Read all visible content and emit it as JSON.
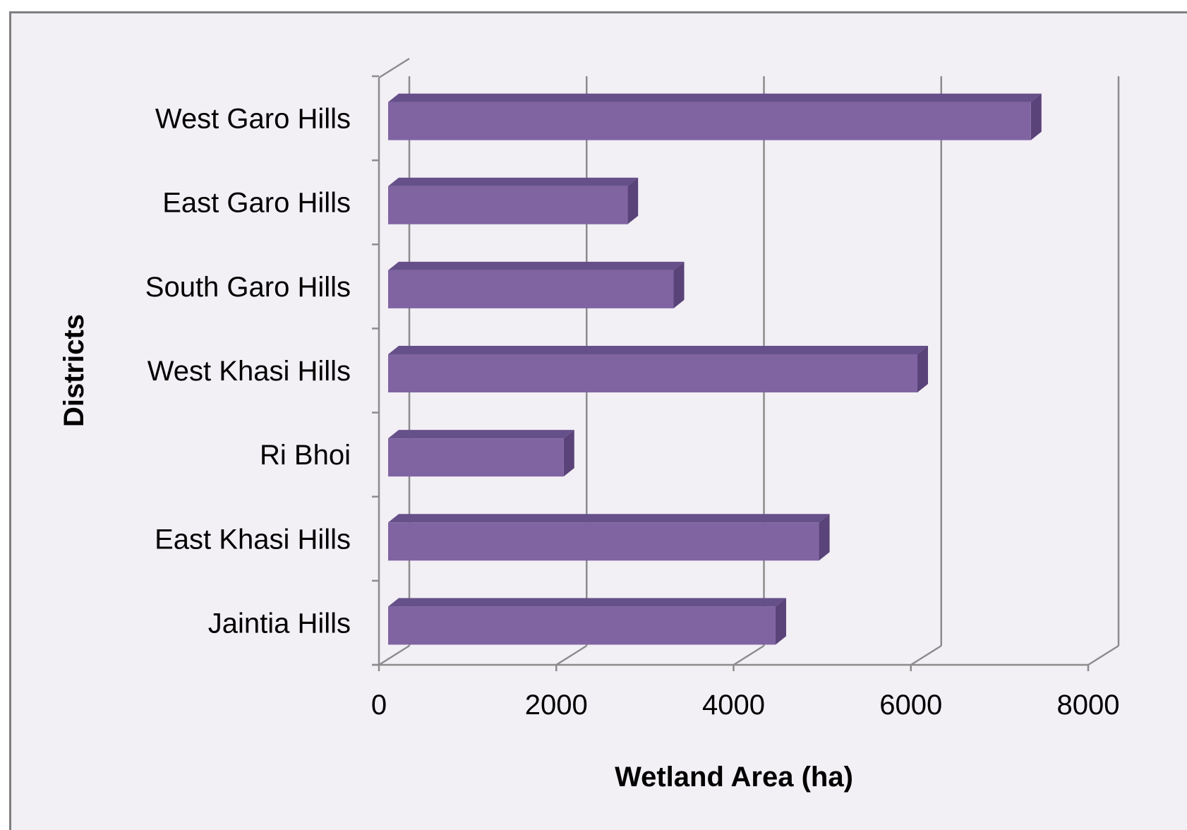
{
  "chart_data": {
    "type": "bar",
    "orientation": "horizontal",
    "style": "3d",
    "categories": [
      "West Garo Hills",
      "East Garo Hills",
      "South Garo Hills",
      "West Khasi Hills",
      "Ri Bhoi",
      "East Khasi Hills",
      "Jaintia Hills"
    ],
    "values": [
      7250,
      2700,
      3220,
      5970,
      1980,
      4860,
      4370
    ],
    "xlabel": "Wetland Area (ha)",
    "ylabel": "Districts",
    "xlim": [
      0,
      8000
    ],
    "xticks": [
      "0",
      "2000",
      "4000",
      "6000",
      "8000"
    ],
    "grid": "vertical",
    "legend": "none",
    "colors": {
      "bar_front": "#8064a2",
      "bar_top": "#66508a",
      "bar_side": "#5a4378",
      "gridline": "#8c8c8c",
      "plot_background": "#f2eff5",
      "frame": "#7f7f7f"
    }
  }
}
